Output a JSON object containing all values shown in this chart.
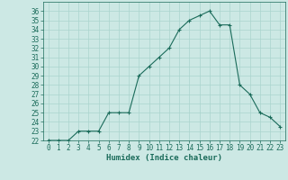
{
  "x": [
    0,
    1,
    2,
    3,
    4,
    5,
    6,
    7,
    8,
    9,
    10,
    11,
    12,
    13,
    14,
    15,
    16,
    17,
    18,
    19,
    20,
    21,
    22,
    23
  ],
  "y": [
    22,
    22,
    22,
    23,
    23,
    23,
    25,
    25,
    25,
    29,
    30,
    31,
    32,
    34,
    35,
    35.5,
    36,
    34.5,
    34.5,
    28,
    27,
    25,
    24.5,
    23.5
  ],
  "xlabel": "Humidex (Indice chaleur)",
  "ylabel": "",
  "ylim": [
    22,
    37
  ],
  "xlim": [
    -0.5,
    23.5
  ],
  "yticks": [
    22,
    23,
    24,
    25,
    26,
    27,
    28,
    29,
    30,
    31,
    32,
    33,
    34,
    35,
    36
  ],
  "xticks": [
    0,
    1,
    2,
    3,
    4,
    5,
    6,
    7,
    8,
    9,
    10,
    11,
    12,
    13,
    14,
    15,
    16,
    17,
    18,
    19,
    20,
    21,
    22,
    23
  ],
  "line_color": "#1a6b5a",
  "marker": "+",
  "bg_color": "#cce8e4",
  "grid_color": "#aad4ce",
  "tick_label_color": "#1a6b5a",
  "xlabel_color": "#1a6b5a",
  "axis_color": "#1a6b5a",
  "tick_fontsize": 5.5,
  "xlabel_fontsize": 6.5
}
